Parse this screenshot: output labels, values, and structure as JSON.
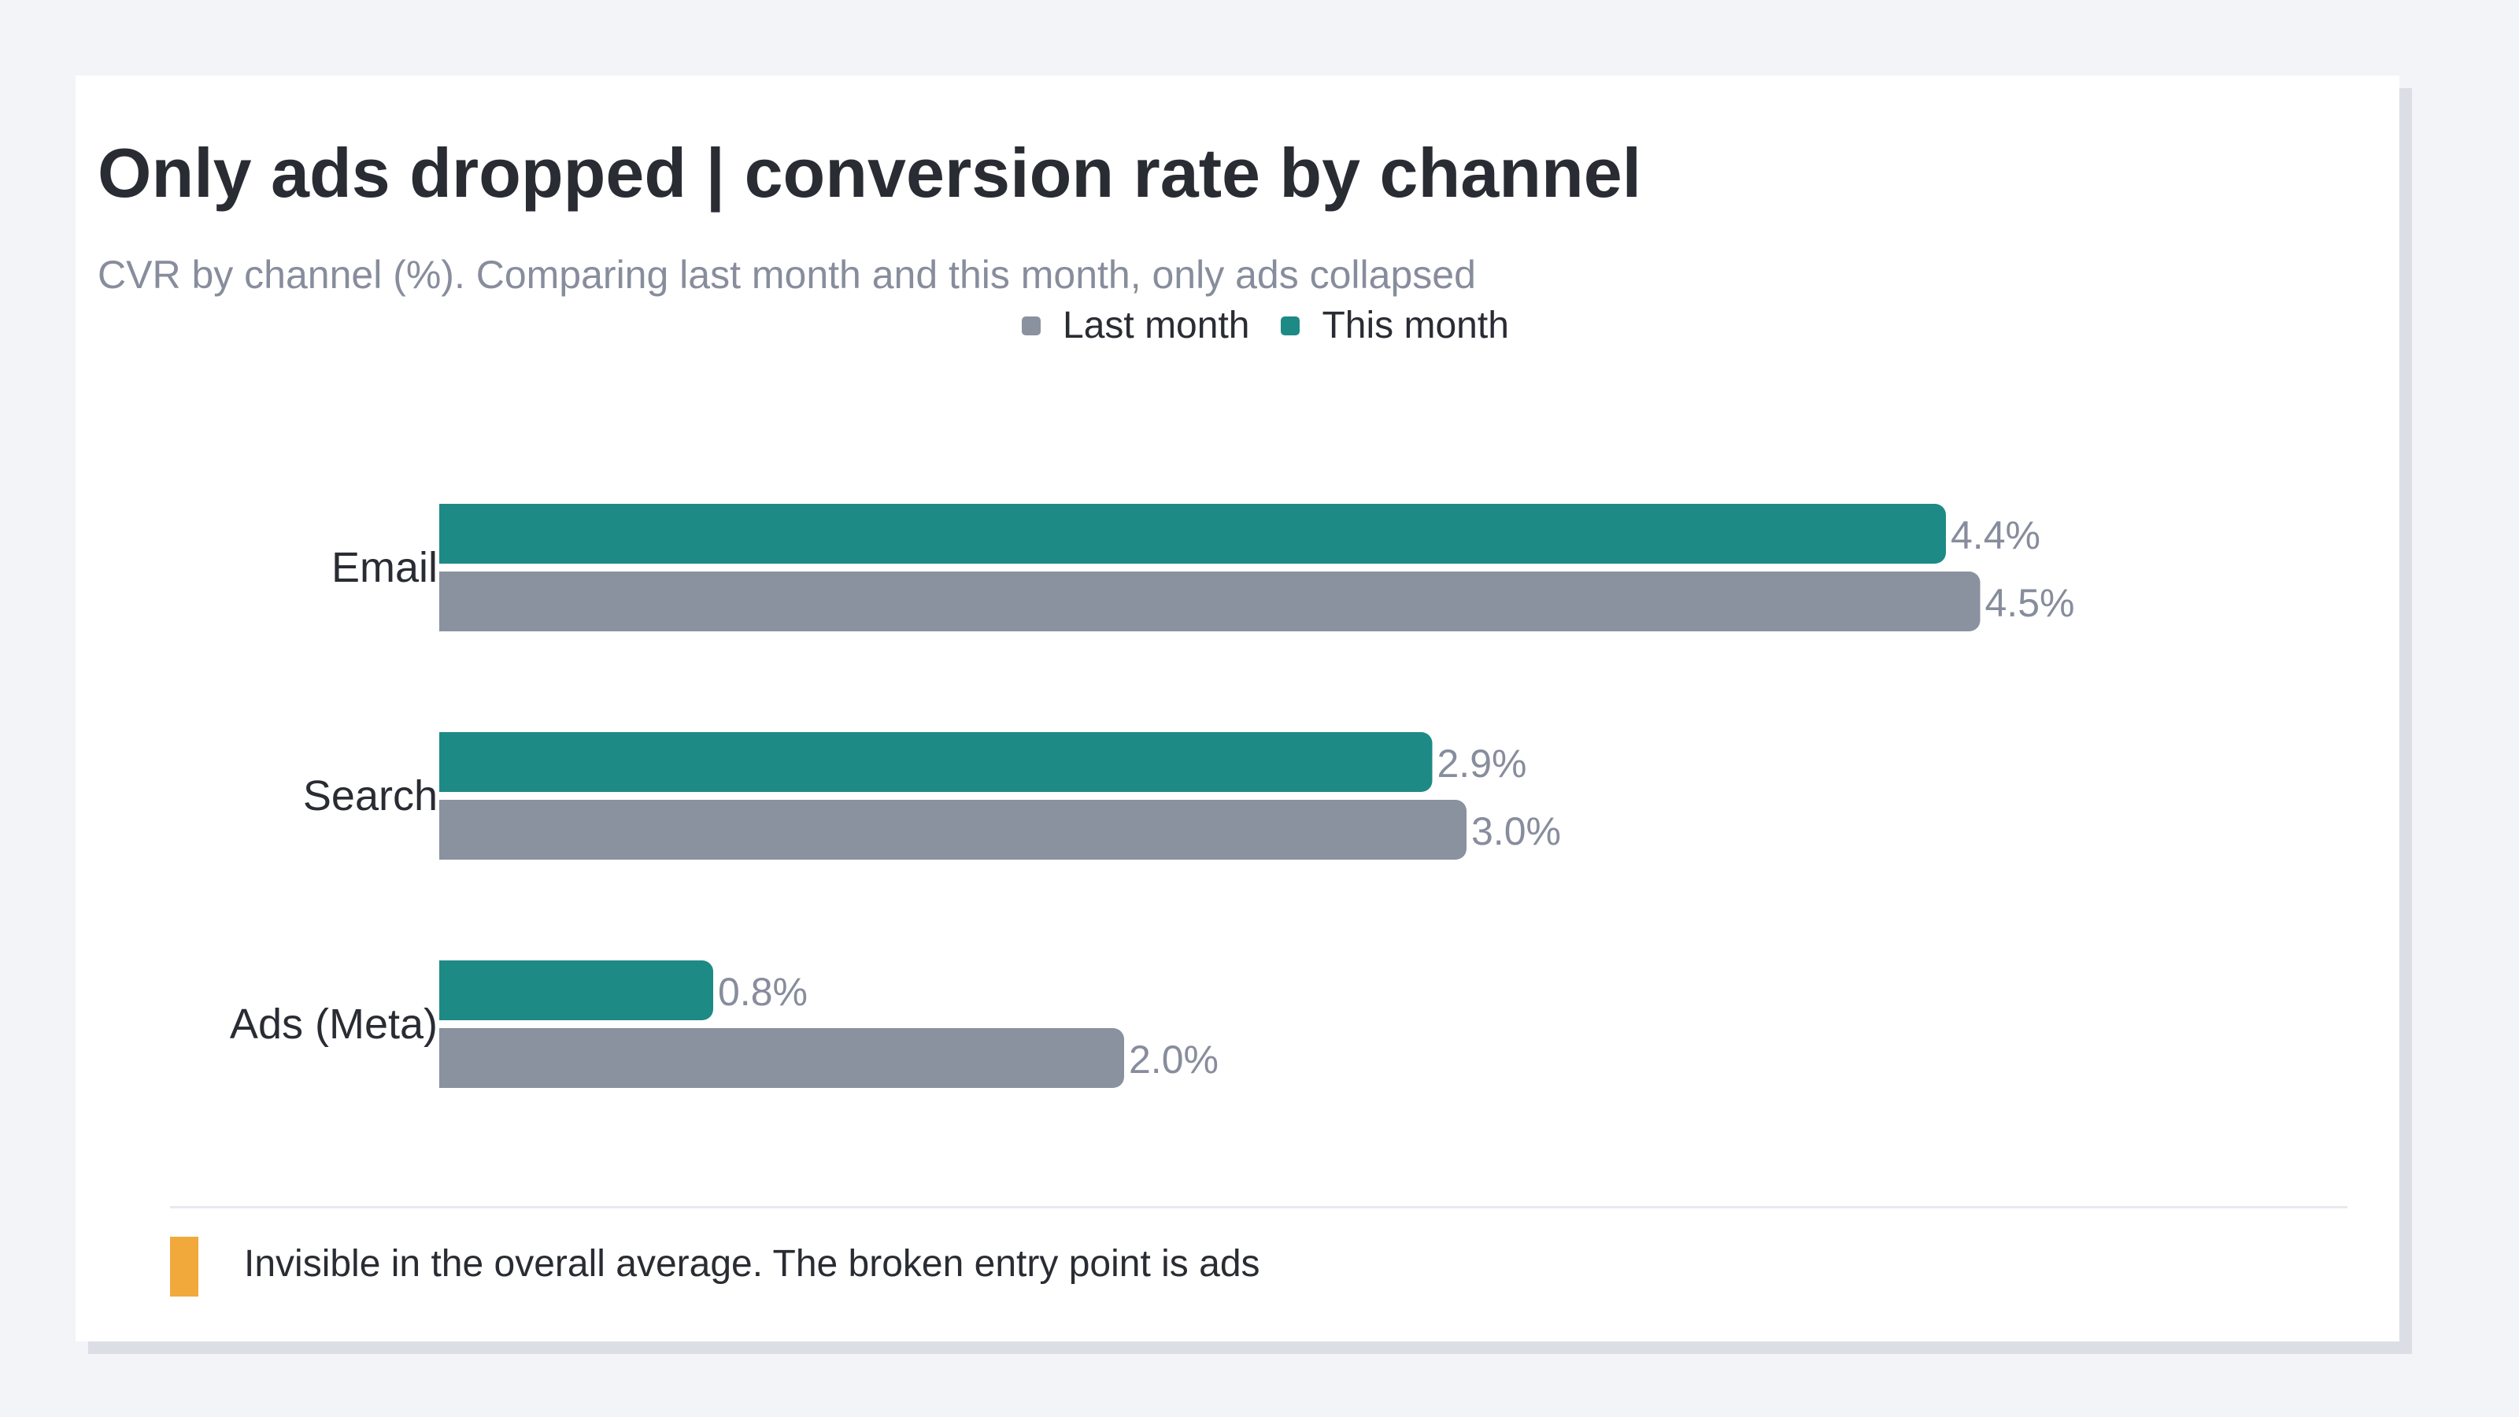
{
  "chart_data": {
    "type": "bar",
    "orientation": "horizontal",
    "title": "Only ads dropped | conversion rate by channel",
    "subtitle": "CVR by channel (%). Comparing last month and this month, only ads collapsed",
    "categories": [
      "Email",
      "Search",
      "Ads (Meta)"
    ],
    "series": [
      {
        "name": "This month",
        "values": [
          4.4,
          2.9,
          0.8
        ],
        "color": "#1e8a86",
        "value_labels": [
          "4.4%",
          "2.9%",
          "0.8%"
        ]
      },
      {
        "name": "Last month",
        "values": [
          4.5,
          3.0,
          2.0
        ],
        "color": "#8a919f",
        "value_labels": [
          "4.5%",
          "3.0%",
          "2.0%"
        ]
      }
    ],
    "legend": {
      "placement": "top-center",
      "items": [
        {
          "name": "Last month",
          "color": "#8a919f"
        },
        {
          "name": "This month",
          "color": "#1e8a86"
        }
      ]
    },
    "xlim": [
      0,
      4.8
    ],
    "grid": false,
    "xlabel": "",
    "ylabel": ""
  },
  "note": {
    "text": "Invisible in the overall average. The broken entry point is ads",
    "marker_color": "#f2a93b"
  }
}
